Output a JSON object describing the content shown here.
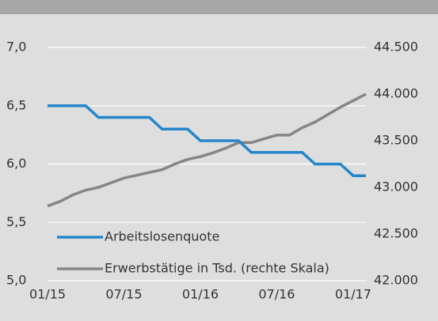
{
  "chart_data": {
    "type": "line",
    "categories": [
      "01/15",
      null,
      null,
      null,
      null,
      null,
      "07/15",
      null,
      null,
      null,
      null,
      null,
      "01/16",
      null,
      null,
      null,
      null,
      null,
      "07/16",
      null,
      null,
      null,
      null,
      null,
      "01/17",
      null
    ],
    "series": [
      {
        "name": "Arbeitslosenquote",
        "color": "#2486cc",
        "values": [
          6.5,
          6.5,
          6.5,
          6.5,
          6.4,
          6.4,
          6.4,
          6.4,
          6.4,
          6.3,
          6.3,
          6.3,
          6.2,
          6.2,
          6.2,
          6.2,
          6.1,
          6.1,
          6.1,
          6.1,
          6.1,
          6.0,
          6.0,
          6.0,
          5.9,
          5.9
        ]
      },
      {
        "name": "Erwerbstätige in Tsd. (rechte Skala)",
        "color": "#858585",
        "axis": "y2",
        "values": [
          42800,
          42850,
          42920,
          42970,
          43000,
          43050,
          43100,
          43130,
          43160,
          43190,
          43250,
          43300,
          43330,
          43370,
          43420,
          43480,
          43480,
          43520,
          43560,
          43560,
          43640,
          43700,
          43780,
          43860,
          43930,
          44000
        ]
      }
    ],
    "ylim": [
      5.0,
      7.0
    ],
    "yticks": [
      {
        "value": 5.0,
        "label": "5,0"
      },
      {
        "value": 5.5,
        "label": "5,5"
      },
      {
        "value": 6.0,
        "label": "6,0"
      },
      {
        "value": 6.5,
        "label": "6,5"
      },
      {
        "value": 7.0,
        "label": "7,0"
      }
    ],
    "y2lim": [
      42000,
      44500
    ],
    "y2ticks": [
      {
        "value": 42000,
        "label": "42.000"
      },
      {
        "value": 42500,
        "label": "42.500"
      },
      {
        "value": 43000,
        "label": "43.000"
      },
      {
        "value": 43500,
        "label": "43.500"
      },
      {
        "value": 44000,
        "label": "44.000"
      },
      {
        "value": 44500,
        "label": "44.500"
      }
    ],
    "grid": true
  }
}
